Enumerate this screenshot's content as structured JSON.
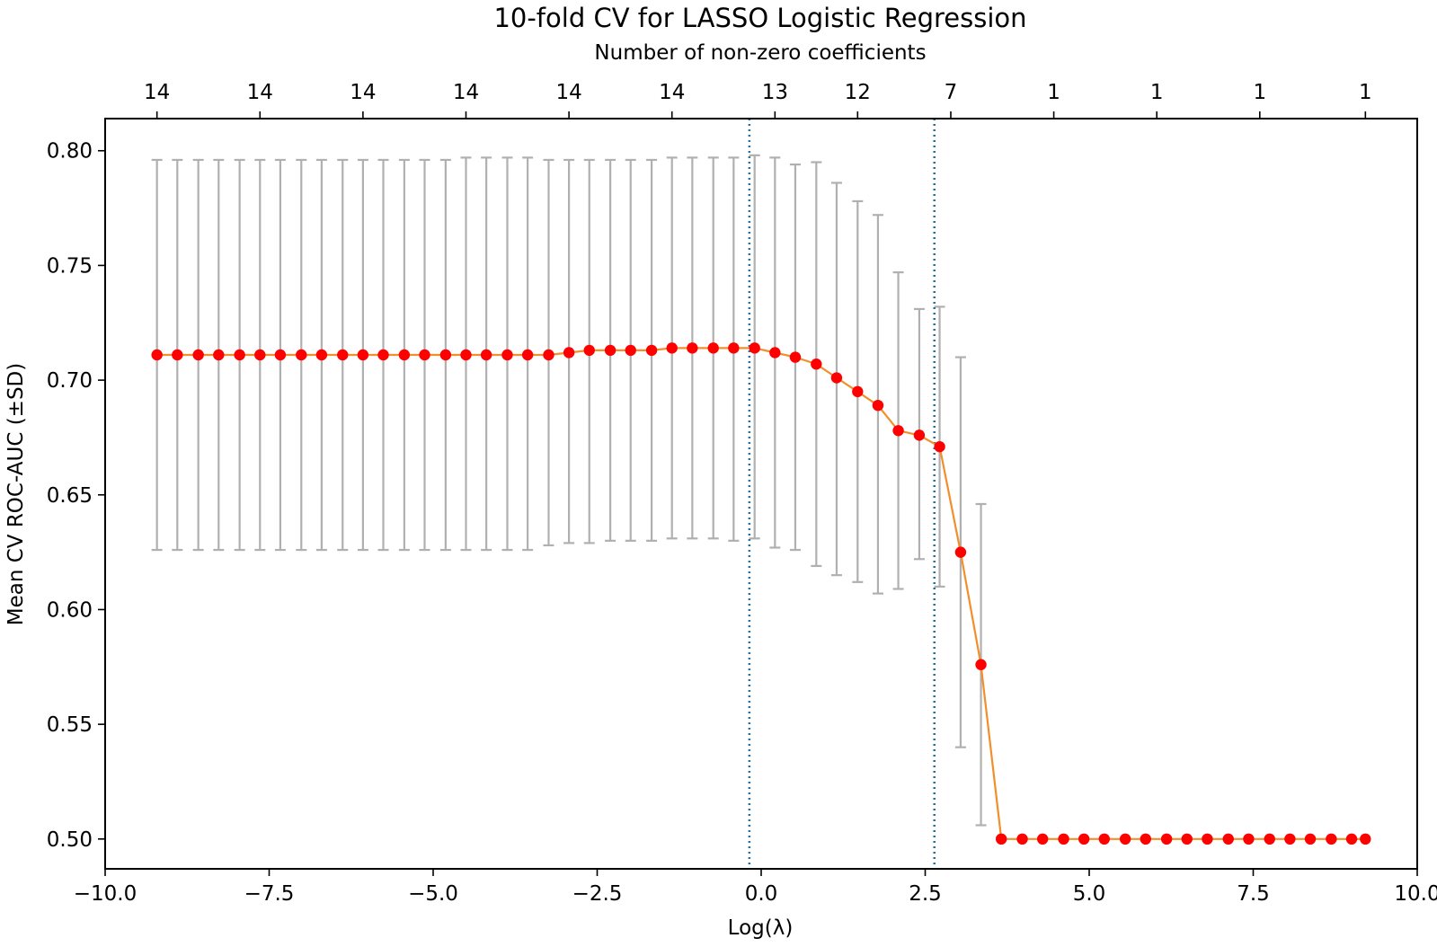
{
  "chart_data": {
    "type": "line",
    "title": "10-fold CV for LASSO Logistic Regression",
    "subtitle": "Number of non-zero coefficients",
    "xlabel": "Log(λ)",
    "ylabel": "Mean CV ROC-AUC (±SD)",
    "xlim": [
      -10.0,
      10.0
    ],
    "ylim": [
      0.487,
      0.814
    ],
    "x_ticks": [
      -10.0,
      -7.5,
      -5.0,
      -2.5,
      0.0,
      2.5,
      5.0,
      7.5,
      10.0
    ],
    "x_tick_labels": [
      "−10.0",
      "−7.5",
      "−5.0",
      "−2.5",
      "0.0",
      "2.5",
      "5.0",
      "7.5",
      "10.0"
    ],
    "y_ticks": [
      0.5,
      0.55,
      0.6,
      0.65,
      0.7,
      0.75,
      0.8
    ],
    "y_tick_labels": [
      "0.50",
      "0.55",
      "0.60",
      "0.65",
      "0.70",
      "0.75",
      "0.80"
    ],
    "top_axis": {
      "ticks": [
        -9.21,
        -7.64,
        -6.07,
        -4.5,
        -2.93,
        -1.36,
        0.21,
        1.47,
        2.89,
        4.46,
        6.03,
        7.6,
        9.21
      ],
      "labels": [
        "14",
        "14",
        "14",
        "14",
        "14",
        "14",
        "13",
        "12",
        "7",
        "1",
        "1",
        "1",
        "1"
      ]
    },
    "vlines": [
      -0.18,
      2.64
    ],
    "grid": false,
    "colors": {
      "line": "#f28e2b",
      "marker": "#ff0000",
      "errorbar": "#b0b0b0",
      "vline": "#2a6f97"
    },
    "series": [
      {
        "x": [
          -9.21,
          -8.9,
          -8.58,
          -8.27,
          -7.95,
          -7.64,
          -7.33,
          -7.01,
          -6.7,
          -6.38,
          -6.07,
          -5.76,
          -5.44,
          -5.13,
          -4.81,
          -4.5,
          -4.19,
          -3.87,
          -3.56,
          -3.24,
          -2.93,
          -2.62,
          -2.3,
          -1.99,
          -1.67,
          -1.36,
          -1.05,
          -0.73,
          -0.42,
          -0.1,
          0.21,
          0.52,
          0.84,
          1.15,
          1.47,
          1.78,
          2.09,
          2.41,
          2.72,
          3.04,
          3.35,
          3.66,
          3.98,
          4.29,
          4.61,
          4.92,
          5.23,
          5.55,
          5.86,
          6.18,
          6.49,
          6.8,
          7.12,
          7.43,
          7.75,
          8.06,
          8.37,
          8.69,
          9.0,
          9.21
        ],
        "y": [
          0.711,
          0.711,
          0.711,
          0.711,
          0.711,
          0.711,
          0.711,
          0.711,
          0.711,
          0.711,
          0.711,
          0.711,
          0.711,
          0.711,
          0.711,
          0.711,
          0.711,
          0.711,
          0.711,
          0.711,
          0.712,
          0.713,
          0.713,
          0.713,
          0.713,
          0.714,
          0.714,
          0.714,
          0.714,
          0.714,
          0.712,
          0.71,
          0.707,
          0.701,
          0.695,
          0.689,
          0.678,
          0.676,
          0.671,
          0.625,
          0.576,
          0.5,
          0.5,
          0.5,
          0.5,
          0.5,
          0.5,
          0.5,
          0.5,
          0.5,
          0.5,
          0.5,
          0.5,
          0.5,
          0.5,
          0.5,
          0.5,
          0.5,
          0.5,
          0.5
        ],
        "yerr_low": [
          0.626,
          0.626,
          0.626,
          0.626,
          0.626,
          0.626,
          0.626,
          0.626,
          0.626,
          0.626,
          0.626,
          0.626,
          0.626,
          0.626,
          0.626,
          0.626,
          0.626,
          0.626,
          0.626,
          0.628,
          0.629,
          0.629,
          0.63,
          0.63,
          0.63,
          0.631,
          0.631,
          0.631,
          0.63,
          0.631,
          0.627,
          0.626,
          0.619,
          0.615,
          0.612,
          0.607,
          0.609,
          0.622,
          0.61,
          0.54,
          0.506,
          0.5,
          0.5,
          0.5,
          0.5,
          0.5,
          0.5,
          0.5,
          0.5,
          0.5,
          0.5,
          0.5,
          0.5,
          0.5,
          0.5,
          0.5,
          0.5,
          0.5,
          0.5,
          0.5
        ],
        "yerr_high": [
          0.796,
          0.796,
          0.796,
          0.796,
          0.796,
          0.796,
          0.796,
          0.796,
          0.796,
          0.796,
          0.796,
          0.796,
          0.796,
          0.796,
          0.796,
          0.797,
          0.797,
          0.797,
          0.797,
          0.796,
          0.796,
          0.796,
          0.796,
          0.796,
          0.796,
          0.797,
          0.797,
          0.797,
          0.797,
          0.798,
          0.797,
          0.794,
          0.795,
          0.786,
          0.778,
          0.772,
          0.747,
          0.731,
          0.732,
          0.71,
          0.646,
          0.5,
          0.5,
          0.5,
          0.5,
          0.5,
          0.5,
          0.5,
          0.5,
          0.5,
          0.5,
          0.5,
          0.5,
          0.5,
          0.5,
          0.5,
          0.5,
          0.5,
          0.5,
          0.5
        ]
      }
    ]
  }
}
